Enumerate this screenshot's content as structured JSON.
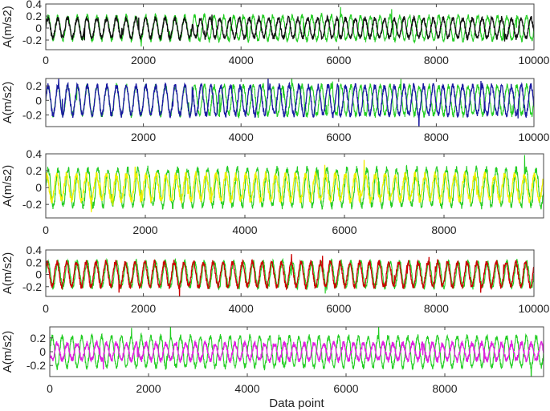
{
  "chart_data": [
    {
      "type": "line",
      "ylabel": "A(m/s2)",
      "xlim": [
        0,
        10000
      ],
      "ylim": [
        -0.36,
        0.4
      ],
      "xticks": [
        "0",
        "2000",
        "4000",
        "6000",
        "8000",
        "10000"
      ],
      "yticks": [
        "0.4",
        "0.2",
        "0",
        "-0.2"
      ],
      "series": [
        {
          "color": "#22cc22",
          "amplitude": 0.2,
          "period": 200,
          "phase_changes": [
            {
              "from": 0,
              "phase_deg": 0
            }
          ]
        },
        {
          "color": "#111111",
          "amplitude": 0.16,
          "period": 200,
          "phase_changes": [
            {
              "from": 0,
              "phase_deg": 10
            },
            {
              "from": 3000,
              "phase_deg": 150
            },
            {
              "from": 6000,
              "phase_deg": 200
            }
          ]
        }
      ]
    },
    {
      "type": "line",
      "ylabel": "A(m/s2)",
      "xlim": [
        0,
        10000
      ],
      "ylim": [
        -0.36,
        0.3
      ],
      "xticks": [
        "2000",
        "4000",
        "6000",
        "8000",
        "10000"
      ],
      "yticks": [
        "0.2",
        "0",
        "-0.2"
      ],
      "series": [
        {
          "color": "#22cc22",
          "amplitude": 0.2,
          "period": 200,
          "phase_changes": [
            {
              "from": 0,
              "phase_deg": 0
            }
          ]
        },
        {
          "color": "#1a1aa0",
          "amplitude": 0.2,
          "period": 200,
          "phase_changes": [
            {
              "from": 0,
              "phase_deg": 0
            },
            {
              "from": 3000,
              "phase_deg": 120
            },
            {
              "from": 6000,
              "phase_deg": 200
            }
          ]
        }
      ]
    },
    {
      "type": "line",
      "ylabel": "A(m/s2)",
      "xlim": [
        0,
        10000
      ],
      "ylim": [
        -0.36,
        0.4
      ],
      "xticks": [
        "0",
        "2000",
        "4000",
        "6000",
        "8000"
      ],
      "yticks": [
        "0.4",
        "0.2",
        "0",
        "-0.2"
      ],
      "series": [
        {
          "color": "#22cc22",
          "amplitude": 0.22,
          "period": 200,
          "phase_changes": [
            {
              "from": 0,
              "phase_deg": 0
            }
          ]
        },
        {
          "color": "#f0f000",
          "amplitude": 0.15,
          "period": 200,
          "phase_changes": [
            {
              "from": 0,
              "phase_deg": 60
            }
          ]
        }
      ]
    },
    {
      "type": "line",
      "ylabel": "A(m/s2)",
      "xlim": [
        0,
        10000
      ],
      "ylim": [
        -0.36,
        0.4
      ],
      "xticks": [
        "0",
        "2000",
        "4000",
        "6000",
        "8000",
        "10000"
      ],
      "yticks": [
        "0.4",
        "0.2",
        "0",
        "-0.2"
      ],
      "series": [
        {
          "color": "#22cc22",
          "amplitude": 0.21,
          "period": 200,
          "phase_changes": [
            {
              "from": 0,
              "phase_deg": 0
            }
          ]
        },
        {
          "color": "#cc0000",
          "amplitude": 0.2,
          "period": 200,
          "phase_changes": [
            {
              "from": 0,
              "phase_deg": 40
            }
          ]
        }
      ]
    },
    {
      "type": "line",
      "ylabel": "A(m/s2)",
      "xlabel": "Data point",
      "xlim": [
        0,
        10000
      ],
      "ylim": [
        -0.36,
        0.36
      ],
      "xticks": [
        "0",
        "2000",
        "4000",
        "6000",
        "8000"
      ],
      "yticks": [
        "0.2",
        "0",
        "-0.2"
      ],
      "series": [
        {
          "color": "#22cc22",
          "amplitude": 0.22,
          "period": 200,
          "phase_changes": [
            {
              "from": 0,
              "phase_deg": 0
            }
          ]
        },
        {
          "color": "#dd22dd",
          "amplitude": 0.12,
          "period": 200,
          "phase_changes": [
            {
              "from": 0,
              "phase_deg": 180
            }
          ]
        }
      ]
    }
  ]
}
